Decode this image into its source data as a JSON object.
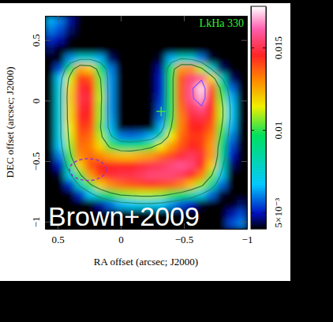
{
  "chart_data": {
    "type": "heatmap",
    "x_label": "RA offset (arcsec; J2000)",
    "y_label": "DEC offset (arcsec; J2000)",
    "annotations": [
      {
        "text": "LkHa 330",
        "color": "#33ee33"
      },
      {
        "text": "Brown+2009",
        "color": "#ffffff"
      }
    ],
    "xlim": [
      0.6,
      -1.0
    ],
    "xticks": [
      0.5,
      0,
      {
        "value": -0.5,
        "label": "−0.5"
      },
      {
        "value": -1,
        "label": "−1"
      }
    ],
    "ylim": [
      -1.06,
      0.7
    ],
    "yticks": [
      {
        "value": -1,
        "label": "−1"
      },
      {
        "value": -0.5,
        "label": "−0.5"
      },
      0,
      0.5
    ],
    "x": [
      0.56,
      0.48,
      0.4,
      0.32,
      0.24,
      0.16,
      0.08,
      0,
      -0.08,
      -0.16,
      -0.24,
      -0.32,
      -0.4,
      -0.48,
      -0.56,
      -0.64,
      -0.72,
      -0.8,
      -0.88,
      -0.96
    ],
    "y": [
      0.66,
      0.58,
      0.5,
      0.42,
      0.34,
      0.26,
      0.18,
      0.1,
      0.02,
      -0.06,
      -0.14,
      -0.22,
      -0.3,
      -0.38,
      -0.46,
      -0.54,
      -0.62,
      -0.7,
      -0.78,
      -0.86,
      -0.94,
      -1.02
    ],
    "z": [
      [
        0.0065,
        0.006,
        0.0048,
        0.0038,
        0.003,
        0.003,
        0.003,
        0.003,
        0.003,
        0.003,
        0.003,
        0.003,
        0.003,
        0.003,
        0.003,
        0.003,
        0.003,
        0.003,
        0.003,
        0.003
      ],
      [
        0.006,
        0.0055,
        0.0045,
        0.0035,
        0.003,
        0.003,
        0.003,
        0.003,
        0.003,
        0.003,
        0.003,
        0.003,
        0.003,
        0.003,
        0.003,
        0.003,
        0.003,
        0.003,
        0.003,
        0.003
      ],
      [
        0.0052,
        0.0048,
        0.004,
        0.0032,
        0.003,
        0.003,
        0.003,
        0.003,
        0.003,
        0.003,
        0.003,
        0.003,
        0.003,
        0.003,
        0.003,
        0.003,
        0.003,
        0.003,
        0.003,
        0.003
      ],
      [
        0.0045,
        0.004,
        0.0035,
        0.0032,
        0.0032,
        0.003,
        0.003,
        0.003,
        0.003,
        0.003,
        0.003,
        0.003,
        0.0035,
        0.0035,
        0.0033,
        0.003,
        0.003,
        0.003,
        0.003,
        0.003
      ],
      [
        0.0035,
        0.004,
        0.0062,
        0.0075,
        0.0075,
        0.0065,
        0.0045,
        0.003,
        0.003,
        0.003,
        0.003,
        0.0042,
        0.0065,
        0.0078,
        0.0075,
        0.006,
        0.0042,
        0.0032,
        0.003,
        0.003
      ],
      [
        0.0032,
        0.0055,
        0.0095,
        0.0125,
        0.012,
        0.0095,
        0.006,
        0.0035,
        0.003,
        0.003,
        0.0032,
        0.0048,
        0.0095,
        0.0128,
        0.013,
        0.011,
        0.0075,
        0.0045,
        0.0032,
        0.003
      ],
      [
        0.0033,
        0.0068,
        0.0112,
        0.0142,
        0.0138,
        0.0105,
        0.0062,
        0.0035,
        0.003,
        0.003,
        0.0032,
        0.005,
        0.0098,
        0.0138,
        0.0155,
        0.0158,
        0.0118,
        0.0078,
        0.0045,
        0.0032
      ],
      [
        0.0034,
        0.0072,
        0.0118,
        0.0148,
        0.0145,
        0.0108,
        0.0062,
        0.0034,
        0.003,
        0.003,
        0.0032,
        0.005,
        0.0098,
        0.0138,
        0.0158,
        0.0172,
        0.0138,
        0.0098,
        0.0058,
        0.0033
      ],
      [
        0.0034,
        0.0073,
        0.012,
        0.015,
        0.0148,
        0.011,
        0.0062,
        0.0034,
        0.003,
        0.003,
        0.0032,
        0.0052,
        0.0098,
        0.0138,
        0.0158,
        0.0168,
        0.0145,
        0.0105,
        0.0065,
        0.0035
      ],
      [
        0.0034,
        0.0073,
        0.0118,
        0.0148,
        0.0146,
        0.0108,
        0.0062,
        0.0034,
        0.003,
        0.003,
        0.0033,
        0.0055,
        0.0098,
        0.0135,
        0.0152,
        0.0158,
        0.0145,
        0.011,
        0.0068,
        0.0035
      ],
      [
        0.0034,
        0.0073,
        0.0118,
        0.0146,
        0.0144,
        0.0108,
        0.0063,
        0.0036,
        0.0032,
        0.0032,
        0.0035,
        0.0058,
        0.01,
        0.0132,
        0.0148,
        0.015,
        0.0142,
        0.011,
        0.0068,
        0.0035
      ],
      [
        0.0034,
        0.0072,
        0.0115,
        0.0142,
        0.014,
        0.0105,
        0.0065,
        0.004,
        0.0036,
        0.0036,
        0.004,
        0.0065,
        0.0105,
        0.0132,
        0.0145,
        0.0145,
        0.0138,
        0.0105,
        0.0065,
        0.0034
      ],
      [
        0.0034,
        0.0072,
        0.0112,
        0.0138,
        0.0135,
        0.011,
        0.0078,
        0.006,
        0.0058,
        0.006,
        0.0065,
        0.0085,
        0.0115,
        0.0135,
        0.0142,
        0.0142,
        0.0132,
        0.01,
        0.006,
        0.0034
      ],
      [
        0.0033,
        0.0068,
        0.0108,
        0.0135,
        0.0132,
        0.0118,
        0.0102,
        0.0092,
        0.009,
        0.0095,
        0.0102,
        0.0115,
        0.0128,
        0.0138,
        0.0145,
        0.0142,
        0.0128,
        0.0092,
        0.0055,
        0.0033
      ],
      [
        0.0032,
        0.006,
        0.0102,
        0.013,
        0.0135,
        0.013,
        0.0125,
        0.0122,
        0.0122,
        0.0125,
        0.0128,
        0.0135,
        0.014,
        0.0148,
        0.0152,
        0.0148,
        0.0128,
        0.0088,
        0.005,
        0.0032
      ],
      [
        0.0031,
        0.005,
        0.009,
        0.012,
        0.0138,
        0.0145,
        0.0145,
        0.0145,
        0.0145,
        0.0148,
        0.015,
        0.0152,
        0.0155,
        0.0158,
        0.0155,
        0.0145,
        0.012,
        0.008,
        0.0045,
        0.0032
      ],
      [
        0.003,
        0.0042,
        0.0072,
        0.0102,
        0.0128,
        0.0142,
        0.0148,
        0.015,
        0.015,
        0.0152,
        0.0155,
        0.0155,
        0.0155,
        0.0152,
        0.0145,
        0.0132,
        0.0105,
        0.007,
        0.004,
        0.0031
      ],
      [
        0.003,
        0.0035,
        0.0052,
        0.0078,
        0.0102,
        0.012,
        0.013,
        0.0135,
        0.0138,
        0.014,
        0.0142,
        0.014,
        0.0138,
        0.0132,
        0.0122,
        0.0108,
        0.0085,
        0.0058,
        0.0035,
        0.003
      ],
      [
        0.003,
        0.0032,
        0.0038,
        0.0052,
        0.0068,
        0.0085,
        0.0098,
        0.0105,
        0.0108,
        0.011,
        0.011,
        0.0108,
        0.0102,
        0.0095,
        0.0085,
        0.0072,
        0.0058,
        0.0042,
        0.0032,
        0.003
      ],
      [
        0.003,
        0.003,
        0.003,
        0.0033,
        0.0038,
        0.0048,
        0.0058,
        0.0065,
        0.0068,
        0.007,
        0.007,
        0.0068,
        0.0062,
        0.0056,
        0.005,
        0.0042,
        0.0036,
        0.0032,
        0.0038,
        0.0045
      ],
      [
        0.003,
        0.003,
        0.003,
        0.003,
        0.003,
        0.003,
        0.003,
        0.003,
        0.0038,
        0.0038,
        0.0038,
        0.0038,
        0.003,
        0.003,
        0.003,
        0.003,
        0.003,
        0.003,
        0.0048,
        0.0055
      ],
      [
        0.003,
        0.003,
        0.003,
        0.003,
        0.003,
        0.003,
        0.003,
        0.003,
        0.003,
        0.003,
        0.003,
        0.003,
        0.003,
        0.003,
        0.003,
        0.003,
        0.003,
        0.004,
        0.0055,
        0.006
      ]
    ],
    "colorbar_range": [
      0.004,
      0.0175
    ],
    "colorbar_ticks": [
      {
        "value": 0.005,
        "label": "5×10⁻³"
      },
      0.01,
      0.015
    ],
    "contours": [
      {
        "level": 0.0075,
        "color": "#1f8f7a"
      },
      {
        "level": 0.0105,
        "color": "#2c7a3a"
      },
      {
        "level": 0.016,
        "color": "#8a4dff"
      }
    ],
    "points": [
      {
        "x": -0.32,
        "y": -0.09,
        "marker": "plus",
        "color": "#44dd44"
      }
    ],
    "beam": {
      "x": 0.26,
      "y": -0.57,
      "major": 0.29,
      "minor": 0.18,
      "color": "#9933cc",
      "line_style": "dashed"
    }
  }
}
